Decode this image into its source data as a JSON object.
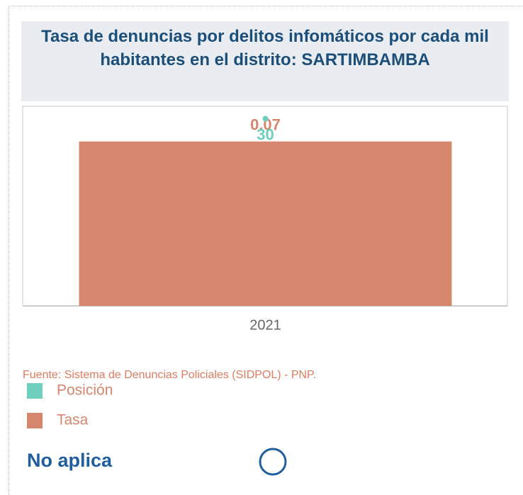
{
  "chart_data": {
    "type": "bar",
    "title": "Tasa de denuncias por delitos infomáticos por cada mil habitantes en el distrito: SARTIMBAMBA",
    "categories": [
      "2021"
    ],
    "series": [
      {
        "name": "Posición",
        "color": "#6ecfbd",
        "values": [
          30
        ],
        "axis": "y2"
      },
      {
        "name": "Tasa",
        "color": "#d6866d",
        "values": [
          0.07
        ]
      }
    ],
    "ylim": [
      0,
      0.085
    ],
    "y2lim": [
      0,
      32
    ],
    "source": "Fuente: Sistema de Denuncias Policiales (SIDPOL) - PNP.",
    "note": "No aplica"
  }
}
